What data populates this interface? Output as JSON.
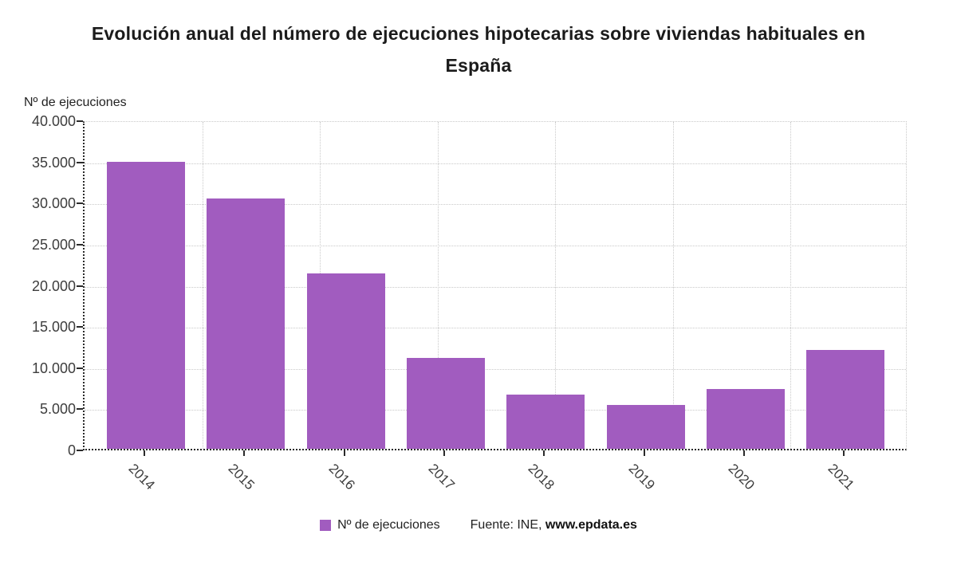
{
  "title_lines": [
    "Evolución anual del número de ejecuciones hipotecarias sobre viviendas habituales en",
    "España"
  ],
  "footer": {
    "legend_label": "Nº de ejecuciones",
    "source_prefix": "Fuente: INE, ",
    "source_link": "www.epdata.es"
  },
  "colors": {
    "bar": "#a15cbf",
    "grid": "#c9c9c9",
    "axis": "#2a2a2a",
    "title_text": "#1b1b1b",
    "tick_text": "#3d3d3d"
  },
  "chart_data": {
    "type": "bar",
    "title": "Evolución anual del número de ejecuciones hipotecarias sobre viviendas habituales en España",
    "ylabel": "Nº de ejecuciones",
    "xlabel": "",
    "categories": [
      "2014",
      "2015",
      "2016",
      "2017",
      "2018",
      "2019",
      "2020",
      "2021"
    ],
    "values": [
      34900,
      30400,
      21300,
      11000,
      6600,
      5300,
      7300,
      12000
    ],
    "series_name": "Nº de ejecuciones",
    "ylim": [
      0,
      40000
    ],
    "y_tick_step": 5000,
    "y_tick_labels": [
      "0",
      "5.000",
      "10.000",
      "15.000",
      "20.000",
      "25.000",
      "30.000",
      "35.000",
      "40.000"
    ],
    "grid": true,
    "legend_position": "bottom",
    "source": "Fuente: INE, www.epdata.es"
  }
}
